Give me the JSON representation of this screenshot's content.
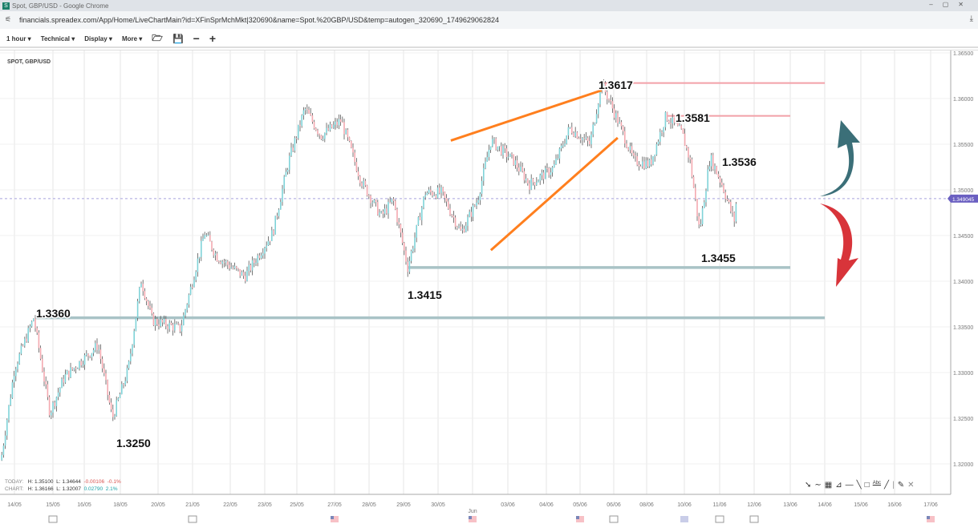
{
  "window": {
    "title": "Spot, GBP/USD - Google Chrome",
    "url": "financials.spreadex.com/App/Home/LiveChartMain?id=XFinSprMchMkt|320690&name=Spot.%20GBP/USD&temp=autogen_320690_1749629062824"
  },
  "toolbar": {
    "interval": "1 hour ▾",
    "technical": "Technical ▾",
    "display": "Display ▾",
    "more": "More ▾",
    "open_icon": "folder-open-icon",
    "save_icon": "save-icon",
    "zoom_out": "−",
    "zoom_in": "+"
  },
  "instrument": "SPOT, GBP/USD",
  "stats": {
    "today": {
      "label": "TODAY:",
      "high": "H: 1.35100",
      "low": "L: 1.34644",
      "change": "-0.00106",
      "pct": "-0.1%"
    },
    "chart": {
      "label": "CHART:",
      "high": "H: 1.36166",
      "low": "L: 1.32007",
      "change": "0.02790",
      "pct": "2.1%"
    }
  },
  "drawing_tools": [
    "pointer-icon",
    "curve-icon",
    "grid-icon",
    "fan-icon",
    "hline-icon",
    "trendline-icon",
    "rectangle-icon",
    "text-icon",
    "line-icon",
    "pencil-icon",
    "close-icon"
  ],
  "colors": {
    "up": "#7fd3d8",
    "down": "#f4a9b0",
    "wick": "#555555",
    "resistance": "#f2a0a8",
    "support": "#a9c3c6",
    "trend": "#ff7f1e",
    "current": "#6a5fc1",
    "arrow_up": "#3b6f78",
    "arrow_down": "#d8343a"
  },
  "chart_data": {
    "type": "candlestick",
    "y_ticks": [
      "1.36500",
      "1.36000",
      "1.35500",
      "1.35000",
      "1.34500",
      "1.34000",
      "1.33500",
      "1.33000",
      "1.32500",
      "1.32000"
    ],
    "ylim": [
      1.3185,
      1.366
    ],
    "x_ticks": [
      "14/05",
      "15/05",
      "16/05",
      "18/05",
      "20/05",
      "21/05",
      "22/05",
      "23/05",
      "25/05",
      "27/05",
      "28/05",
      "29/05",
      "30/05",
      "Jun",
      "03/06",
      "04/06",
      "05/06",
      "06/06",
      "08/06",
      "10/06",
      "11/06",
      "12/06",
      "13/06",
      "14/06",
      "15/06",
      "16/06",
      "17/06"
    ],
    "current_price": "1.349045",
    "price_path": [
      [
        "14/05",
        -0.35,
        1.3204
      ],
      [
        "14/05",
        0,
        1.3304
      ],
      [
        "14/05",
        0.5,
        1.336
      ],
      [
        "14/05",
        0.92,
        1.3256
      ],
      [
        "15/05",
        0.36,
        1.3295
      ],
      [
        "16/05",
        0.38,
        1.333
      ],
      [
        "16/05",
        0.78,
        1.325
      ],
      [
        "18/05",
        0.21,
        1.3304
      ],
      [
        "18/05",
        0.55,
        1.3401
      ],
      [
        "18/05",
        0.85,
        1.3357
      ],
      [
        "20/05",
        0.65,
        1.3348
      ],
      [
        "21/05",
        0.32,
        1.3453
      ],
      [
        "21/05",
        0.64,
        1.3427
      ],
      [
        "22/05",
        0.42,
        1.3405
      ],
      [
        "23/05",
        0.25,
        1.3453
      ],
      [
        "23/05",
        0.75,
        1.3532
      ],
      [
        "25/05",
        0.21,
        1.3589
      ],
      [
        "25/05",
        0.64,
        1.3559
      ],
      [
        "27/05",
        0.19,
        1.3576
      ],
      [
        "27/05",
        0.77,
        1.351
      ],
      [
        "28/05",
        0.35,
        1.3471
      ],
      [
        "28/05",
        0.7,
        1.3489
      ],
      [
        "29/05",
        0.12,
        1.3415
      ],
      [
        "29/05",
        0.63,
        1.3497
      ],
      [
        "30/05",
        0.09,
        1.3497
      ],
      [
        "30/05",
        0.67,
        1.3453
      ],
      [
        "Jun",
        0.14,
        1.3489
      ],
      [
        "Jun",
        0.52,
        1.3554
      ],
      [
        "03/06",
        0.15,
        1.3532
      ],
      [
        "03/06",
        0.56,
        1.3506
      ],
      [
        "04/06",
        0.21,
        1.3524
      ],
      [
        "04/06",
        0.69,
        1.3568
      ],
      [
        "05/06",
        0.29,
        1.355
      ],
      [
        "05/06",
        0.64,
        1.3617
      ],
      [
        "06/06",
        0.12,
        1.3576
      ],
      [
        "06/06",
        0.61,
        1.3532
      ],
      [
        "08/06",
        0.09,
        1.3528
      ],
      [
        "08/06",
        0.51,
        1.3581
      ],
      [
        "08/06",
        0.94,
        1.3562
      ],
      [
        "10/06",
        0.16,
        1.3532
      ],
      [
        "10/06",
        0.43,
        1.3455
      ],
      [
        "10/06",
        0.73,
        1.3536
      ],
      [
        "11/06",
        0.07,
        1.3506
      ],
      [
        "11/06",
        0.42,
        1.3466
      ],
      [
        "11/06",
        0.49,
        1.349
      ]
    ],
    "annotations": [
      {
        "text": "1.3617",
        "price": 1.3617,
        "from": [
          "05/06",
          0.6
        ],
        "to": [
          "13/06",
          1.0
        ],
        "kind": "resistance"
      },
      {
        "text": "1.3581",
        "price": 1.3581,
        "from": [
          "08/06",
          0.55
        ],
        "to": [
          "13/06",
          0.0
        ],
        "kind": "resistance"
      },
      {
        "text": "1.3536",
        "price": 1.3536,
        "kind": "label"
      },
      {
        "text": "1.3455",
        "price": 1.3455,
        "kind": "label"
      },
      {
        "text": "1.3415",
        "price": 1.3415,
        "from": [
          "29/05",
          0.12
        ],
        "to": [
          "13/06",
          0.0
        ],
        "kind": "support"
      },
      {
        "text": "1.3360",
        "price": 1.336,
        "from": [
          "14/05",
          0.55
        ],
        "to": [
          "14/06",
          0.0
        ],
        "kind": "support"
      },
      {
        "text": "1.3250",
        "price": 1.325,
        "kind": "label"
      }
    ],
    "trend_lines": [
      [
        [
          "30/05",
          0.37,
          1.3554
        ],
        [
          "05/06",
          0.64,
          1.3609
        ]
      ],
      [
        [
          "Jun",
          0.52,
          1.3434
        ],
        [
          "06/06",
          0.12,
          1.3557
        ]
      ]
    ]
  }
}
